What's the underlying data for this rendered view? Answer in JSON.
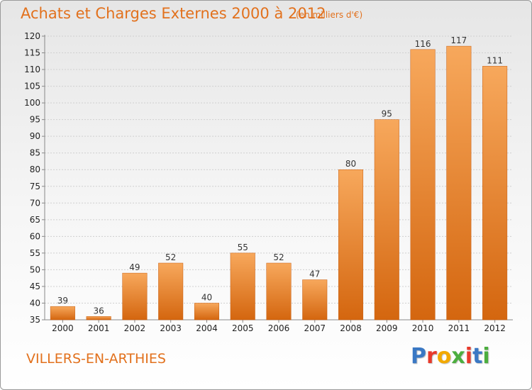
{
  "header": {
    "title": "Achats et Charges Externes 2000 à 2012",
    "unit": "(en milliers d'€)"
  },
  "footer": {
    "commune": "VILLERS-EN-ARTHIES",
    "logo_letters": [
      "P",
      "r",
      "o",
      "x",
      "i",
      "t",
      "i"
    ],
    "logo_colors": [
      "#3a78c4",
      "#e8392b",
      "#f2a900",
      "#4cae3f",
      "#e8392b",
      "#3a78c4",
      "#4cae3f"
    ]
  },
  "chart_data": {
    "type": "bar",
    "title": "Achats et Charges Externes 2000 à 2012",
    "subtitle": "(en milliers d'€)",
    "categories": [
      "2000",
      "2001",
      "2002",
      "2003",
      "2004",
      "2005",
      "2006",
      "2007",
      "2008",
      "2009",
      "2010",
      "2011",
      "2012"
    ],
    "values": [
      39,
      36,
      49,
      52,
      40,
      55,
      52,
      47,
      80,
      95,
      116,
      117,
      111
    ],
    "data_labels": [
      "39",
      "36",
      "49",
      "52",
      "40",
      "55",
      "52",
      "47",
      "80",
      "95",
      "116",
      "117",
      "111"
    ],
    "ylim": [
      35,
      120
    ],
    "yticks": [
      "35",
      "40",
      "45",
      "50",
      "55",
      "60",
      "65",
      "70",
      "75",
      "80",
      "85",
      "90",
      "95",
      "100",
      "105",
      "110",
      "115",
      "120"
    ],
    "grid": true,
    "colors": {
      "bar_top": "#f7a85c",
      "bar_bottom": "#d4660f",
      "bar_edge": "#c75d10",
      "grid": "#d0d0d0",
      "axis": "#888888"
    }
  }
}
